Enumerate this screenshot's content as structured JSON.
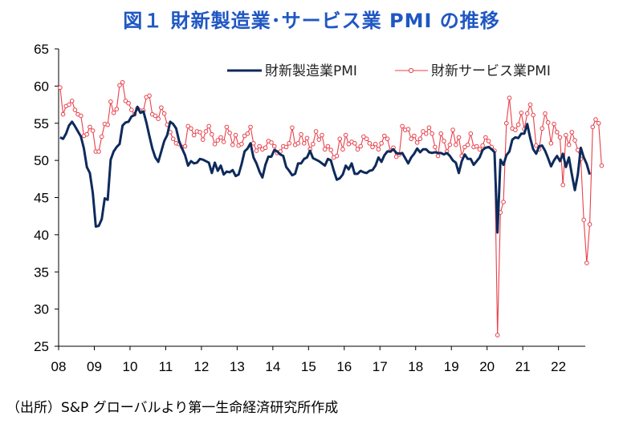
{
  "title": "図１ 財新製造業･サービス業 PMI の推移",
  "source": "（出所）S&P グローバルより第一生命経済研究所作成",
  "colors": {
    "manufacturing": "#0e2a5c",
    "services": "#e8404a",
    "axis": "#000000"
  },
  "chart_data": {
    "type": "line",
    "title": "図１ 財新製造業･サービス業 PMI の推移",
    "xlabel": "",
    "ylabel": "",
    "ylim": [
      25,
      65
    ],
    "yticks": [
      "25",
      "30",
      "35",
      "40",
      "45",
      "50",
      "55",
      "60",
      "65"
    ],
    "xticks": [
      "08",
      "09",
      "10",
      "11",
      "12",
      "13",
      "14",
      "15",
      "16",
      "17",
      "18",
      "19",
      "20",
      "21",
      "22"
    ],
    "x_start": "2008-01",
    "x_end": "2022-09",
    "grid": false,
    "legend_position": "top-right",
    "series": [
      {
        "name": "財新製造業PMI",
        "style": "line",
        "values": [
          53.1,
          52.9,
          53.6,
          54.7,
          55.2,
          54.6,
          53.9,
          53.2,
          51.6,
          49.1,
          48.3,
          45.6,
          41.1,
          41.2,
          42.1,
          44.9,
          44.7,
          50.1,
          51.2,
          51.8,
          52.2,
          54.7,
          55.1,
          55.2,
          55.9,
          56.1,
          57.2,
          56.4,
          56.6,
          55.1,
          53.3,
          51.6,
          50.4,
          49.8,
          51.2,
          52.6,
          53.4,
          55.2,
          54.9,
          54.3,
          52.6,
          51.6,
          50.7,
          49.3,
          49.9,
          49.6,
          49.7,
          50.2,
          50.1,
          49.9,
          49.7,
          48.3,
          49.7,
          48.6,
          49.3,
          48.1,
          48.5,
          48.4,
          48.7,
          47.9,
          48.1,
          49.5,
          51.2,
          51.6,
          52.3,
          50.4,
          49.6,
          48.5,
          47.7,
          49.4,
          50.5,
          50.5,
          51.4,
          51.2,
          50.8,
          50.6,
          49.1,
          48.6,
          48.0,
          48.2,
          49.6,
          49.6,
          50.2,
          50.4,
          51.3,
          50.3,
          50.1,
          49.9,
          49.6,
          49.3,
          50.2,
          50.0,
          48.6,
          47.4,
          47.6,
          48.1,
          49.3,
          48.8,
          49.6,
          48.2,
          48.2,
          48.6,
          48.4,
          48.3,
          48.6,
          48.7,
          49.3,
          50.4,
          49.8,
          50.7,
          51.2,
          51.2,
          51.5,
          51.0,
          50.9,
          51.0,
          50.3,
          49.6,
          50.4,
          50.9,
          51.6,
          51.1,
          51.5,
          51.5,
          51.1,
          51.0,
          51.1,
          51.0,
          51.0,
          50.8,
          51.0,
          50.6,
          50.0,
          49.7,
          48.3,
          49.9,
          50.8,
          50.2,
          50.2,
          49.4,
          49.9,
          50.4,
          51.4,
          51.7,
          51.8,
          51.5,
          51.1,
          40.3,
          50.1,
          49.4,
          50.7,
          51.2,
          52.8,
          53.1,
          53.0,
          53.6,
          53.6,
          54.9,
          53.0,
          51.5,
          50.9,
          51.9,
          52.0,
          51.3,
          50.3,
          49.2,
          50.0,
          50.6,
          49.9,
          50.9,
          49.1,
          50.4,
          48.1,
          46.0,
          48.1,
          51.7,
          50.4,
          49.5,
          48.1
        ]
      },
      {
        "name": "財新サービス業PMI",
        "style": "line-with-circle-markers",
        "values": [
          59.8,
          56.2,
          57.3,
          57.5,
          58.0,
          56.8,
          56.2,
          56.0,
          53.3,
          53.5,
          54.5,
          54.0,
          51.2,
          51.2,
          53.2,
          54.9,
          54.8,
          57.9,
          56.4,
          56.9,
          60.1,
          60.5,
          58.0,
          57.7,
          56.8,
          56.2,
          57.0,
          56.7,
          56.7,
          58.5,
          58.7,
          56.2,
          56.0,
          55.6,
          57.1,
          56.3,
          54.8,
          53.8,
          52.9,
          52.3,
          52.2,
          51.8,
          51.9,
          54.6,
          54.3,
          53.4,
          53.9,
          53.8,
          52.8,
          53.9,
          54.6,
          53.5,
          52.2,
          52.7,
          53.1,
          52.5,
          54.5,
          53.7,
          52.1,
          53.4,
          52.0,
          52.2,
          53.3,
          53.6,
          54.5,
          52.3,
          51.3,
          51.9,
          51.5,
          51.7,
          52.6,
          52.4,
          51.9,
          51.0,
          51.2,
          51.9,
          51.8,
          52.3,
          54.4,
          52.1,
          52.3,
          53.5,
          52.3,
          53.0,
          51.5,
          52.2,
          53.9,
          52.8,
          53.4,
          51.5,
          51.9,
          51.4,
          50.4,
          50.6,
          52.9,
          51.5,
          53.4,
          52.2,
          52.5,
          52.3,
          51.5,
          51.9,
          53.2,
          52.9,
          52.3,
          51.8,
          52.2,
          51.5,
          52.3,
          53.3,
          52.9,
          51.3,
          51.7,
          50.5,
          50.8,
          54.6,
          54.1,
          54.2,
          52.9,
          53.3,
          52.4,
          52.9,
          53.9,
          53.6,
          54.4,
          53.6,
          51.8,
          50.6,
          53.6,
          52.6,
          51.2,
          52.1,
          54.1,
          52.1,
          53.1,
          50.6,
          51.8,
          52.1,
          53.6,
          51.8,
          51.9,
          51.5,
          52.0,
          53.1,
          52.6,
          51.8,
          51.3,
          26.5,
          43.0,
          44.4,
          55.0,
          58.4,
          54.3,
          54.1,
          54.8,
          56.4,
          54.2,
          56.3,
          57.5,
          56.1,
          52.0,
          51.5,
          54.3,
          56.3,
          55.1,
          52.3,
          54.9,
          53.8,
          53.1,
          46.7,
          53.4,
          52.1,
          53.8,
          52.7,
          51.4,
          50.2,
          42.0,
          36.2,
          41.4,
          54.5,
          55.5,
          55.0,
          49.3
        ]
      }
    ]
  }
}
